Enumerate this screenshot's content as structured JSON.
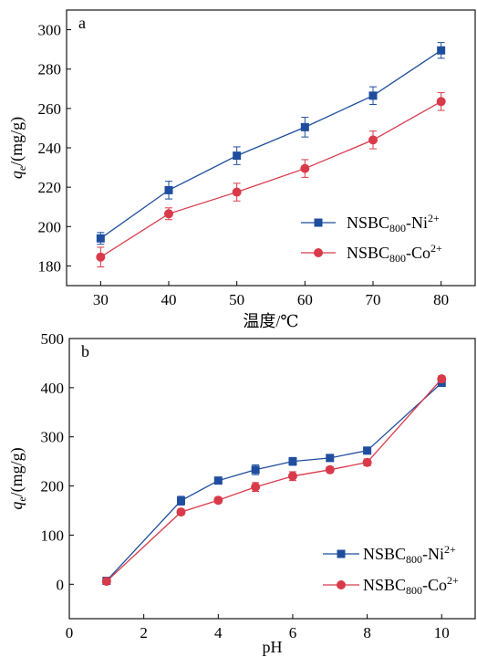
{
  "chart_data": [
    {
      "type": "line",
      "panel_label": "a",
      "xlabel": "温度/℃",
      "ylabel": {
        "main": "q",
        "sub": "e",
        "rest": "/(mg/g)"
      },
      "xlim": [
        25,
        85
      ],
      "ylim": [
        170,
        310
      ],
      "xticks": [
        30,
        40,
        50,
        60,
        70,
        80
      ],
      "yticks": [
        180,
        200,
        220,
        240,
        260,
        280,
        300
      ],
      "legend_position": "lower-right",
      "series": [
        {
          "name": {
            "base": "NSBC",
            "sub": "800",
            "ion": "-Ni",
            "sup": "2+"
          },
          "color": "#1f4e9e",
          "marker": "square",
          "x": [
            30,
            40,
            50,
            60,
            70,
            80
          ],
          "y": [
            194,
            218.5,
            236,
            250.5,
            266.5,
            289.5
          ],
          "err": [
            3,
            4.5,
            4.5,
            5,
            4.5,
            4
          ]
        },
        {
          "name": {
            "base": "NSBC",
            "sub": "800",
            "ion": "-Co",
            "sup": "2+"
          },
          "color": "#d93a4a",
          "marker": "circle",
          "x": [
            30,
            40,
            50,
            60,
            70,
            80
          ],
          "y": [
            184.5,
            206.5,
            217.5,
            229.5,
            244,
            263.5
          ],
          "err": [
            5,
            3,
            4.5,
            4.5,
            4.5,
            4.5
          ]
        }
      ]
    },
    {
      "type": "line",
      "panel_label": "b",
      "xlabel": "pH",
      "ylabel": {
        "main": "q",
        "sub": "e",
        "rest": "/(mg/g)"
      },
      "xlim": [
        0,
        10.9
      ],
      "ylim": [
        -70,
        500
      ],
      "xticks": [
        0,
        2,
        4,
        6,
        8,
        10
      ],
      "yticks": [
        0,
        100,
        200,
        300,
        400,
        500
      ],
      "legend_position": "lower-right",
      "series": [
        {
          "name": {
            "base": "NSBC",
            "sub": "800",
            "ion": "-Ni",
            "sup": "2+"
          },
          "color": "#1f4e9e",
          "marker": "square",
          "x": [
            1,
            3,
            4,
            5,
            6,
            7,
            8,
            10
          ],
          "y": [
            7,
            170,
            211,
            233,
            250,
            257,
            272,
            410
          ],
          "err": [
            0,
            9,
            6,
            10,
            8,
            6,
            7,
            7
          ]
        },
        {
          "name": {
            "base": "NSBC",
            "sub": "800",
            "ion": "-Co",
            "sup": "2+"
          },
          "color": "#d93a4a",
          "marker": "circle",
          "x": [
            1,
            3,
            4,
            5,
            6,
            7,
            8,
            10
          ],
          "y": [
            6,
            147,
            171,
            198,
            220,
            233,
            248,
            418
          ],
          "err": [
            0,
            6,
            6,
            9,
            9,
            6,
            7,
            6
          ]
        }
      ]
    }
  ]
}
